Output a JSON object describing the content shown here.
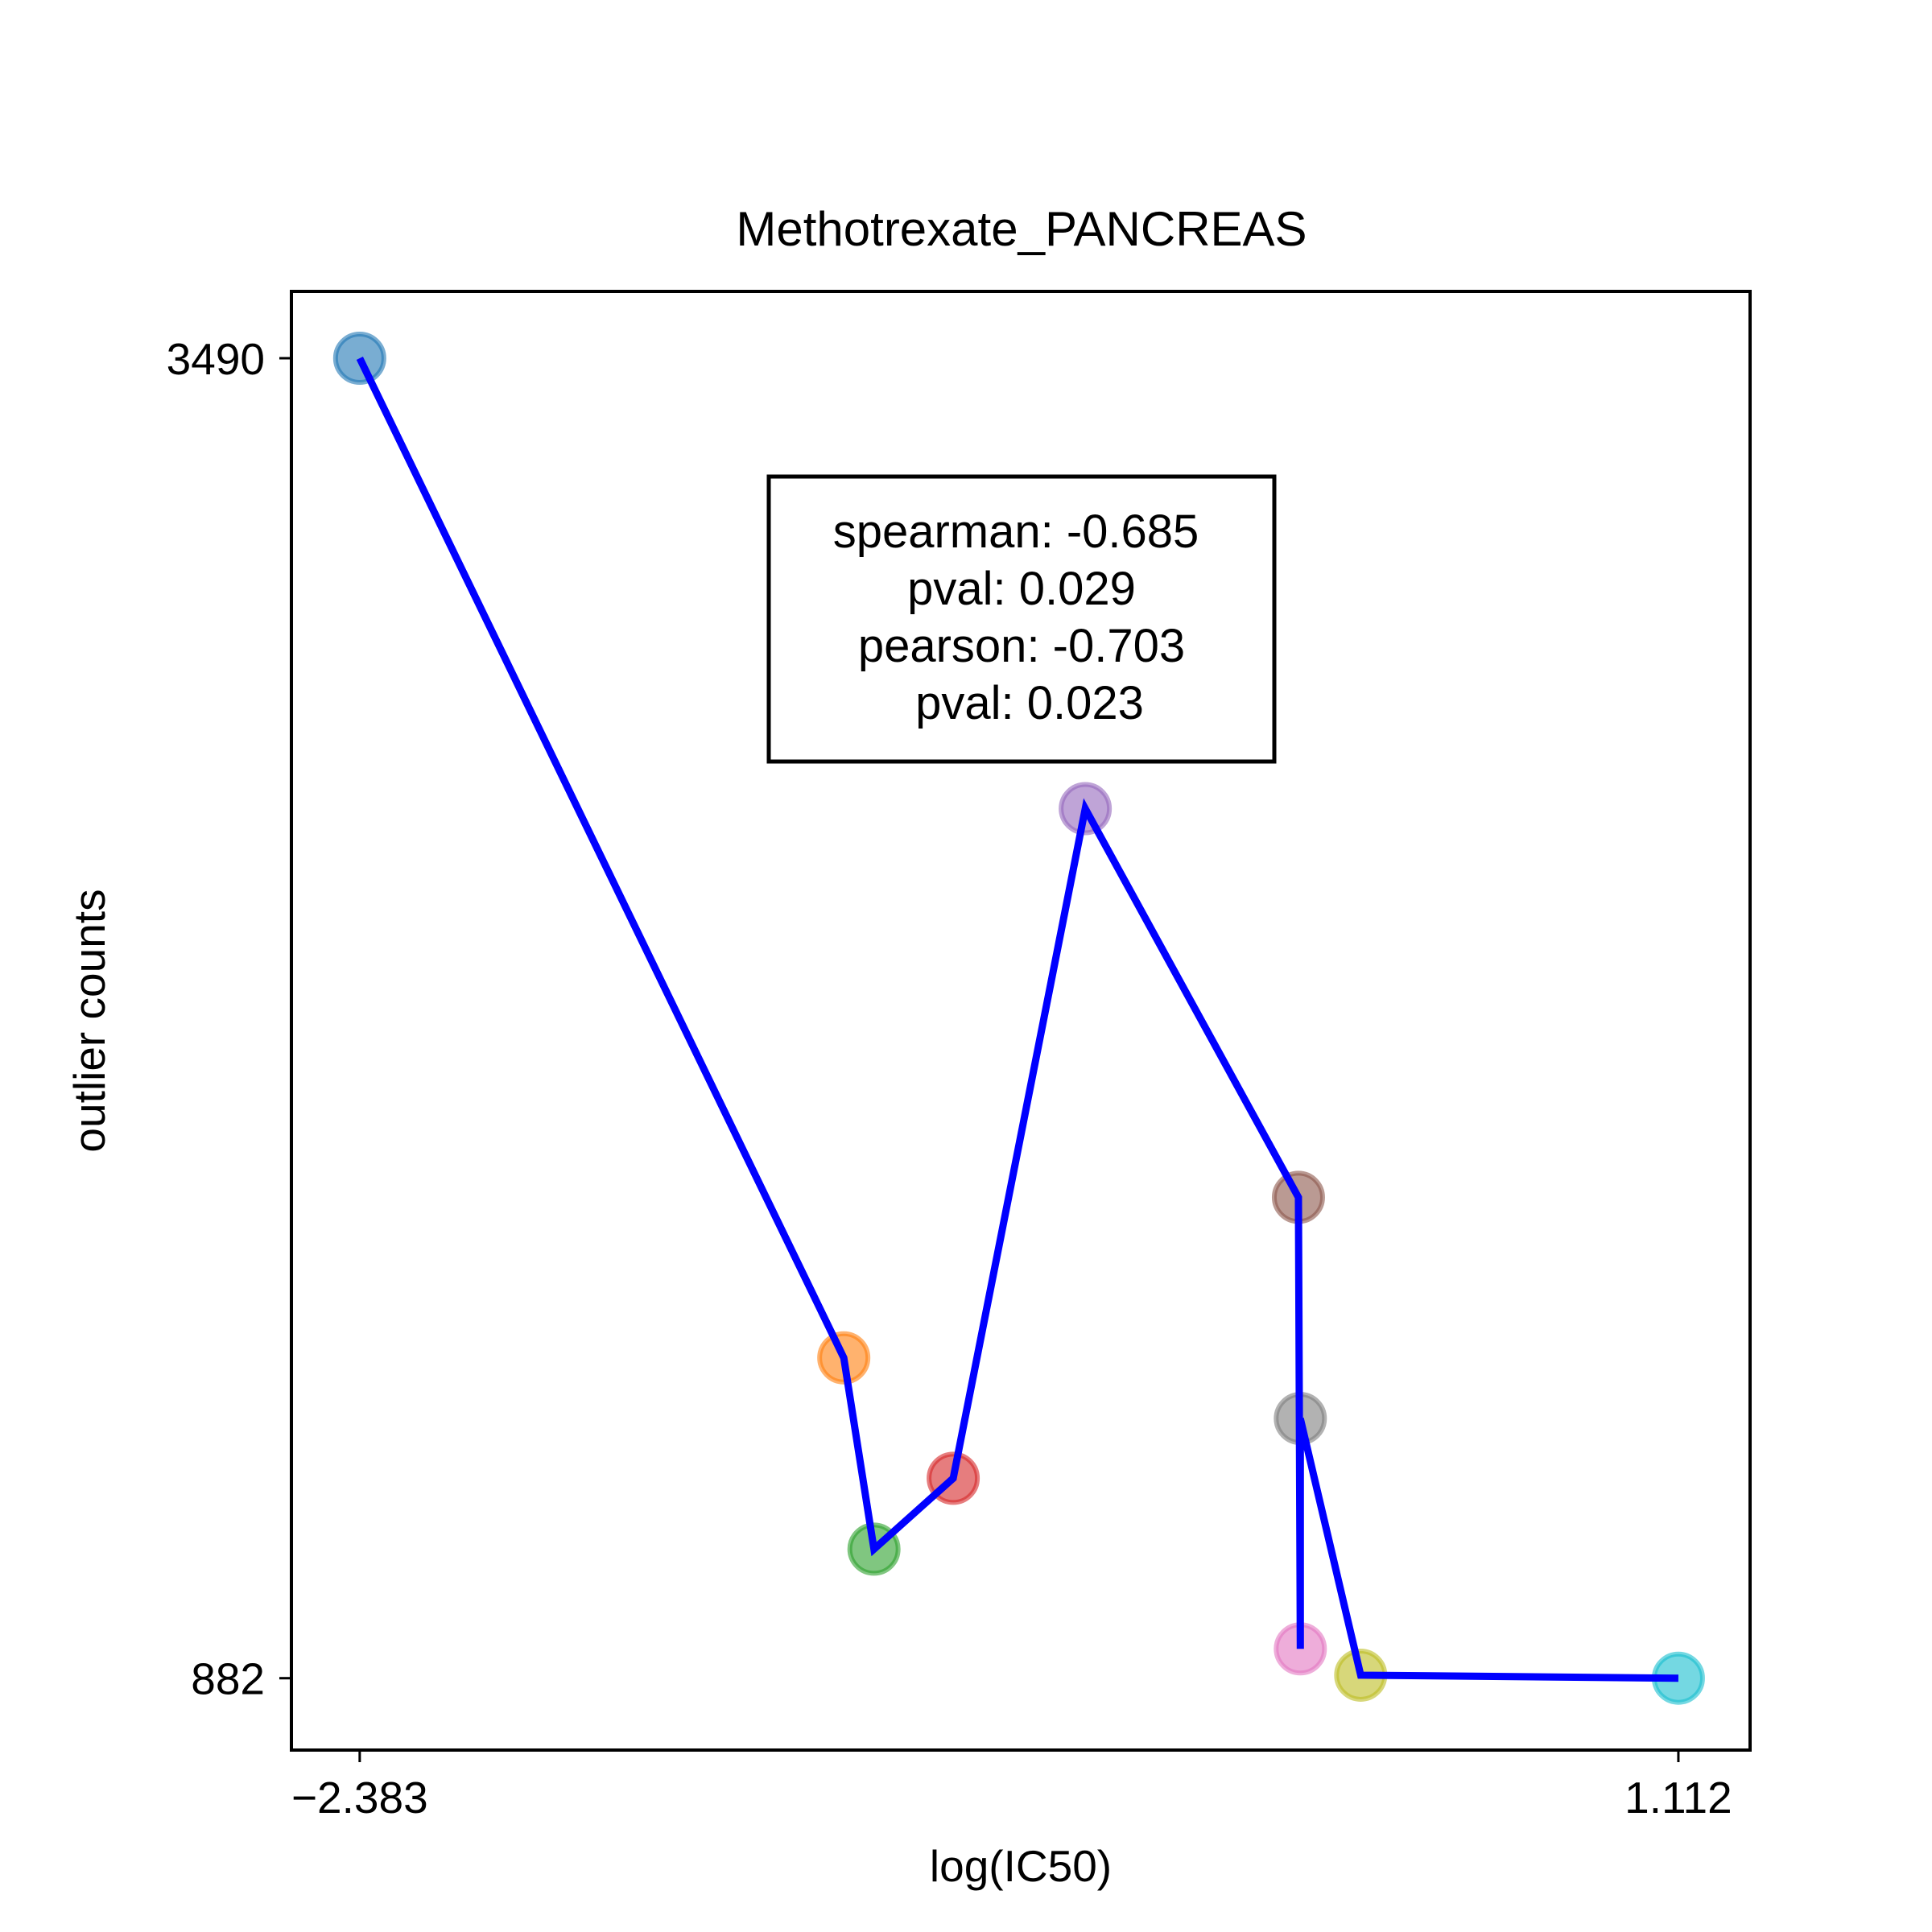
{
  "chart_data": {
    "type": "scatter",
    "title": "Methotrexate_PANCREAS",
    "xlabel": "log(IC50)",
    "ylabel": "outlier counts",
    "x_ticks": [
      -2.383,
      1.112
    ],
    "x_tick_labels": [
      "−2.383",
      "1.112"
    ],
    "y_ticks": [
      882,
      3490
    ],
    "y_tick_labels": [
      "882",
      "3490"
    ],
    "xlim": [
      -2.564,
      1.302
    ],
    "ylim": [
      740,
      3622
    ],
    "grid": false,
    "legend": "none",
    "points": [
      {
        "x": -2.383,
        "y": 3490,
        "color": "#1f77b4"
      },
      {
        "x": -1.1,
        "y": 1515,
        "color": "#ff7f0e"
      },
      {
        "x": -1.02,
        "y": 1137,
        "color": "#2ca02c"
      },
      {
        "x": -0.81,
        "y": 1277,
        "color": "#d62728"
      },
      {
        "x": -0.46,
        "y": 2600,
        "color": "#9467bd"
      },
      {
        "x": 0.105,
        "y": 1832,
        "color": "#8c564b"
      },
      {
        "x": 0.11,
        "y": 940,
        "color": "#e377c2"
      },
      {
        "x": 0.11,
        "y": 1395,
        "color": "#7f7f7f"
      },
      {
        "x": 0.27,
        "y": 888,
        "color": "#bcbd22"
      },
      {
        "x": 1.112,
        "y": 882,
        "color": "#17becf"
      }
    ],
    "fit_line": {
      "color": "#0000ff",
      "x": [
        -2.383,
        -1.1,
        -1.02,
        -0.81,
        -0.46,
        0.105,
        0.11,
        0.11,
        0.27,
        1.112
      ],
      "y": [
        3490,
        1515,
        1137,
        1277,
        2600,
        1832,
        940,
        1395,
        888,
        882
      ]
    },
    "annotation": {
      "lines": [
        "spearman: -0.685",
        "pval: 0.029",
        "pearson: -0.703",
        "pval: 0.023"
      ]
    }
  }
}
